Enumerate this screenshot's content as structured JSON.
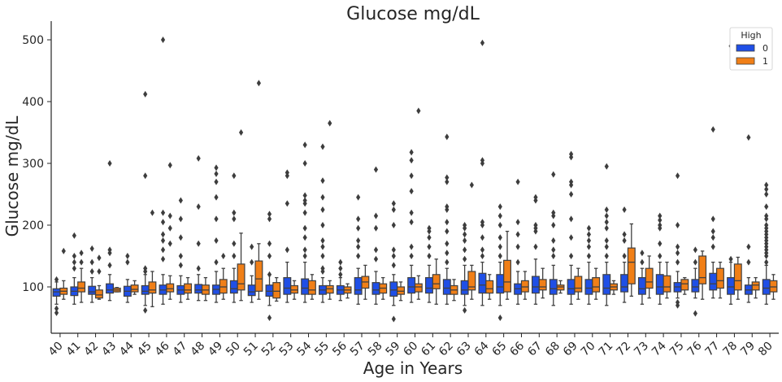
{
  "chart_data": {
    "type": "boxplot",
    "title": "Glucose mg/dL",
    "xlabel": "Age in Years",
    "ylabel": "Glucose mg/dL",
    "ylim": [
      25,
      525
    ],
    "yticks": [
      100,
      200,
      300,
      400,
      500
    ],
    "grid": false,
    "legend": {
      "title": "High",
      "placement": "top-right",
      "entries": [
        "0",
        "1"
      ]
    },
    "colors": {
      "0": "#1f4fe6",
      "1": "#f07f17",
      "axis": "#262626",
      "whisker": "#404040"
    },
    "categories": [
      "40",
      "41",
      "42",
      "43",
      "44",
      "45",
      "46",
      "47",
      "48",
      "49",
      "50",
      "51",
      "52",
      "53",
      "54",
      "55",
      "56",
      "57",
      "58",
      "59",
      "60",
      "61",
      "62",
      "63",
      "64",
      "65",
      "66",
      "67",
      "68",
      "69",
      "70",
      "71",
      "72",
      "73",
      "74",
      "75",
      "76",
      "77",
      "78",
      "79",
      "80"
    ],
    "series": [
      {
        "name": "0",
        "boxes": [
          {
            "q1": 85,
            "med": 92,
            "q3": 97,
            "lo": 72,
            "hi": 108,
            "out": [
              58,
              65,
              112
            ]
          },
          {
            "q1": 86,
            "med": 93,
            "q3": 100,
            "lo": 72,
            "hi": 115,
            "out": [
              130,
              140,
              150,
              183
            ]
          },
          {
            "q1": 88,
            "med": 92,
            "q3": 101,
            "lo": 75,
            "hi": 115,
            "out": [
              125,
              140,
              162
            ]
          },
          {
            "q1": 90,
            "med": 95,
            "q3": 105,
            "lo": 78,
            "hi": 120,
            "out": [
              135,
              155,
              160,
              300
            ]
          },
          {
            "q1": 85,
            "med": 93,
            "q3": 101,
            "lo": 75,
            "hi": 112,
            "out": [
              140,
              150
            ]
          },
          {
            "q1": 88,
            "med": 93,
            "q3": 102,
            "lo": 70,
            "hi": 120,
            "out": [
              62,
              125,
              130,
              280,
              412
            ]
          },
          {
            "q1": 88,
            "med": 95,
            "q3": 103,
            "lo": 72,
            "hi": 120,
            "out": [
              145,
              160,
              175,
              185,
              205,
              220,
              500
            ]
          },
          {
            "q1": 88,
            "med": 95,
            "q3": 102,
            "lo": 75,
            "hi": 118,
            "out": [
              135,
              150,
              180,
              210,
              240
            ]
          },
          {
            "q1": 90,
            "med": 95,
            "q3": 104,
            "lo": 78,
            "hi": 120,
            "out": [
              130,
              170,
              230,
              308
            ]
          },
          {
            "q1": 88,
            "med": 96,
            "q3": 103,
            "lo": 75,
            "hi": 125,
            "out": [
              140,
              175,
              210,
              245,
              270,
              283,
              293
            ]
          },
          {
            "q1": 90,
            "med": 97,
            "q3": 110,
            "lo": 75,
            "hi": 130,
            "out": [
              150,
              170,
              210,
              220,
              280
            ]
          },
          {
            "q1": 86,
            "med": 92,
            "q3": 103,
            "lo": 75,
            "hi": 118,
            "out": [
              140,
              165
            ]
          },
          {
            "q1": 85,
            "med": 93,
            "q3": 103,
            "lo": 70,
            "hi": 120,
            "out": [
              50,
              120,
              150,
              170,
              210,
              218
            ]
          },
          {
            "q1": 88,
            "med": 98,
            "q3": 115,
            "lo": 75,
            "hi": 140,
            "out": [
              160,
              235,
              280,
              285
            ]
          },
          {
            "q1": 88,
            "med": 98,
            "q3": 113,
            "lo": 75,
            "hi": 140,
            "out": [
              150,
              160,
              180,
              195,
              220,
              235,
              240,
              248,
              300,
              330
            ]
          },
          {
            "q1": 88,
            "med": 95,
            "q3": 102,
            "lo": 75,
            "hi": 115,
            "out": [
              125,
              130,
              150,
              165,
              175,
              200,
              225,
              245,
              272,
              327
            ]
          },
          {
            "q1": 88,
            "med": 95,
            "q3": 102,
            "lo": 78,
            "hi": 115,
            "out": [
              120,
              130,
              140
            ]
          },
          {
            "q1": 88,
            "med": 95,
            "q3": 115,
            "lo": 72,
            "hi": 130,
            "out": [
              150,
              165,
              175,
              195,
              210,
              245
            ]
          },
          {
            "q1": 88,
            "med": 95,
            "q3": 107,
            "lo": 72,
            "hi": 125,
            "out": [
              145,
              160,
              195,
              215,
              290
            ]
          },
          {
            "q1": 85,
            "med": 95,
            "q3": 108,
            "lo": 70,
            "hi": 120,
            "out": [
              48,
              135,
              150,
              160,
              200,
              225,
              235
            ]
          },
          {
            "q1": 90,
            "med": 100,
            "q3": 115,
            "lo": 75,
            "hi": 135,
            "out": [
              150,
              165,
              205,
              220,
              255,
              280,
              305,
              318
            ]
          },
          {
            "q1": 90,
            "med": 98,
            "q3": 115,
            "lo": 75,
            "hi": 135,
            "out": [
              150,
              165,
              180,
              190,
              195
            ]
          },
          {
            "q1": 88,
            "med": 98,
            "q3": 112,
            "lo": 72,
            "hi": 130,
            "out": [
              140,
              155,
              170,
              190,
              205,
              225,
              230,
              270,
              277,
              343
            ]
          },
          {
            "q1": 88,
            "med": 95,
            "q3": 110,
            "lo": 70,
            "hi": 135,
            "out": [
              62,
              145,
              160,
              175,
              185,
              195,
              200
            ]
          },
          {
            "q1": 90,
            "med": 103,
            "q3": 122,
            "lo": 70,
            "hi": 140,
            "out": [
              150,
              160,
              180,
              200,
              205,
              300,
              305,
              495
            ]
          },
          {
            "q1": 90,
            "med": 100,
            "q3": 120,
            "lo": 70,
            "hi": 140,
            "out": [
              50,
              150,
              165,
              180,
              200,
              215,
              230
            ]
          },
          {
            "q1": 88,
            "med": 97,
            "q3": 105,
            "lo": 72,
            "hi": 125,
            "out": [
              140,
              165,
              185,
              205,
              270
            ]
          },
          {
            "q1": 90,
            "med": 100,
            "q3": 117,
            "lo": 72,
            "hi": 145,
            "out": [
              165,
              190,
              195,
              200,
              240,
              245
            ]
          },
          {
            "q1": 88,
            "med": 97,
            "q3": 112,
            "lo": 70,
            "hi": 135,
            "out": [
              150,
              160,
              175,
              200,
              215,
              220,
              282
            ]
          },
          {
            "q1": 88,
            "med": 97,
            "q3": 112,
            "lo": 72,
            "hi": 135,
            "out": [
              150,
              180,
              210,
              250,
              265,
              270,
              310,
              315
            ]
          },
          {
            "q1": 88,
            "med": 98,
            "q3": 112,
            "lo": 72,
            "hi": 140,
            "out": [
              150,
              165,
              175,
              185,
              195
            ]
          },
          {
            "q1": 88,
            "med": 98,
            "q3": 120,
            "lo": 70,
            "hi": 140,
            "out": [
              150,
              165,
              175,
              195,
              205,
              215,
              225,
              295
            ]
          },
          {
            "q1": 92,
            "med": 100,
            "q3": 120,
            "lo": 75,
            "hi": 140,
            "out": [
              150,
              175,
              185,
              225
            ]
          },
          {
            "q1": 88,
            "med": 97,
            "q3": 115,
            "lo": 72,
            "hi": 130,
            "out": [
              140,
              155
            ]
          },
          {
            "q1": 88,
            "med": 100,
            "q3": 120,
            "lo": 72,
            "hi": 140,
            "out": [
              150,
              170,
              195,
              200,
              208,
              215
            ]
          },
          {
            "q1": 92,
            "med": 100,
            "q3": 107,
            "lo": 82,
            "hi": 125,
            "out": [
              70,
              75,
              140,
              155,
              165,
              200,
              280
            ]
          },
          {
            "q1": 92,
            "med": 100,
            "q3": 112,
            "lo": 82,
            "hi": 130,
            "out": [
              57,
              140,
              160
            ]
          },
          {
            "q1": 95,
            "med": 105,
            "q3": 122,
            "lo": 82,
            "hi": 140,
            "out": [
              165,
              180,
              190,
              210,
              355
            ]
          },
          {
            "q1": 88,
            "med": 100,
            "q3": 115,
            "lo": 72,
            "hi": 140,
            "out": [
              145,
              490
            ]
          },
          {
            "q1": 88,
            "med": 95,
            "q3": 103,
            "lo": 75,
            "hi": 115,
            "out": [
              140,
              165,
              342
            ]
          },
          {
            "q1": 88,
            "med": 98,
            "q3": 112,
            "lo": 72,
            "hi": 135,
            "out": [
              140,
              150,
              155,
              160,
              165,
              170,
              175,
              180,
              185,
              190,
              195,
              200,
              210,
              215,
              230,
              250,
              258,
              265
            ]
          }
        ]
      },
      {
        "name": "1",
        "boxes": [
          {
            "q1": 88,
            "med": 93,
            "q3": 98,
            "lo": 80,
            "hi": 110,
            "out": [
              158
            ]
          },
          {
            "q1": 92,
            "med": 98,
            "q3": 108,
            "lo": 75,
            "hi": 130,
            "out": [
              140,
              155
            ]
          },
          {
            "q1": 82,
            "med": 87,
            "q3": 95,
            "lo": 80,
            "hi": 102,
            "out": [
              125,
              147
            ]
          },
          {
            "q1": 92,
            "med": 95,
            "q3": 98,
            "lo": 92,
            "hi": 99,
            "out": []
          },
          {
            "q1": 92,
            "med": 96,
            "q3": 103,
            "lo": 88,
            "hi": 110,
            "out": []
          },
          {
            "q1": 90,
            "med": 95,
            "q3": 108,
            "lo": 68,
            "hi": 125,
            "out": [
              220
            ]
          },
          {
            "q1": 92,
            "med": 97,
            "q3": 105,
            "lo": 80,
            "hi": 118,
            "out": [
              170,
              195,
              215,
              297
            ]
          },
          {
            "q1": 90,
            "med": 95,
            "q3": 105,
            "lo": 80,
            "hi": 115,
            "out": []
          },
          {
            "q1": 88,
            "med": 95,
            "q3": 103,
            "lo": 78,
            "hi": 115,
            "out": []
          },
          {
            "q1": 90,
            "med": 100,
            "q3": 112,
            "lo": 80,
            "hi": 130,
            "out": [
              150
            ]
          },
          {
            "q1": 95,
            "med": 105,
            "q3": 137,
            "lo": 78,
            "hi": 187,
            "out": [
              350
            ]
          },
          {
            "q1": 93,
            "med": 113,
            "q3": 142,
            "lo": 80,
            "hi": 170,
            "out": [
              430
            ]
          },
          {
            "q1": 82,
            "med": 93,
            "q3": 107,
            "lo": 77,
            "hi": 115,
            "out": []
          },
          {
            "q1": 90,
            "med": 95,
            "q3": 102,
            "lo": 80,
            "hi": 110,
            "out": []
          },
          {
            "q1": 88,
            "med": 95,
            "q3": 110,
            "lo": 80,
            "hi": 120,
            "out": []
          },
          {
            "q1": 90,
            "med": 97,
            "q3": 102,
            "lo": 80,
            "hi": 110,
            "out": [
              365
            ]
          },
          {
            "q1": 90,
            "med": 95,
            "q3": 100,
            "lo": 82,
            "hi": 105,
            "out": []
          },
          {
            "q1": 98,
            "med": 108,
            "q3": 117,
            "lo": 80,
            "hi": 135,
            "out": []
          },
          {
            "q1": 90,
            "med": 98,
            "q3": 105,
            "lo": 80,
            "hi": 115,
            "out": []
          },
          {
            "q1": 88,
            "med": 93,
            "q3": 100,
            "lo": 78,
            "hi": 108,
            "out": []
          },
          {
            "q1": 92,
            "med": 100,
            "q3": 105,
            "lo": 80,
            "hi": 118,
            "out": [
              385
            ]
          },
          {
            "q1": 97,
            "med": 105,
            "q3": 120,
            "lo": 72,
            "hi": 145,
            "out": []
          },
          {
            "q1": 88,
            "med": 95,
            "q3": 102,
            "lo": 78,
            "hi": 112,
            "out": []
          },
          {
            "q1": 95,
            "med": 100,
            "q3": 125,
            "lo": 80,
            "hi": 135,
            "out": [
              265
            ]
          },
          {
            "q1": 90,
            "med": 97,
            "q3": 110,
            "lo": 80,
            "hi": 120,
            "out": []
          },
          {
            "q1": 92,
            "med": 108,
            "q3": 143,
            "lo": 80,
            "hi": 190,
            "out": []
          },
          {
            "q1": 92,
            "med": 100,
            "q3": 110,
            "lo": 80,
            "hi": 125,
            "out": []
          },
          {
            "q1": 95,
            "med": 100,
            "q3": 112,
            "lo": 82,
            "hi": 130,
            "out": []
          },
          {
            "q1": 95,
            "med": 100,
            "q3": 103,
            "lo": 90,
            "hi": 110,
            "out": []
          },
          {
            "q1": 92,
            "med": 98,
            "q3": 117,
            "lo": 80,
            "hi": 130,
            "out": []
          },
          {
            "q1": 92,
            "med": 100,
            "q3": 115,
            "lo": 80,
            "hi": 130,
            "out": []
          },
          {
            "q1": 95,
            "med": 100,
            "q3": 105,
            "lo": 88,
            "hi": 110,
            "out": []
          },
          {
            "q1": 105,
            "med": 140,
            "q3": 163,
            "lo": 85,
            "hi": 202,
            "out": []
          },
          {
            "q1": 98,
            "med": 108,
            "q3": 130,
            "lo": 82,
            "hi": 150,
            "out": []
          },
          {
            "q1": 92,
            "med": 100,
            "q3": 118,
            "lo": 82,
            "hi": 140,
            "out": []
          },
          {
            "q1": 95,
            "med": 105,
            "q3": 112,
            "lo": 88,
            "hi": 115,
            "out": []
          },
          {
            "q1": 105,
            "med": 115,
            "q3": 150,
            "lo": 80,
            "hi": 158,
            "out": []
          },
          {
            "q1": 98,
            "med": 110,
            "q3": 130,
            "lo": 82,
            "hi": 140,
            "out": []
          },
          {
            "q1": 95,
            "med": 110,
            "q3": 137,
            "lo": 80,
            "hi": 148,
            "out": []
          },
          {
            "q1": 95,
            "med": 103,
            "q3": 108,
            "lo": 82,
            "hi": 115,
            "out": []
          },
          {
            "q1": 92,
            "med": 100,
            "q3": 110,
            "lo": 80,
            "hi": 120,
            "out": []
          }
        ]
      }
    ]
  }
}
